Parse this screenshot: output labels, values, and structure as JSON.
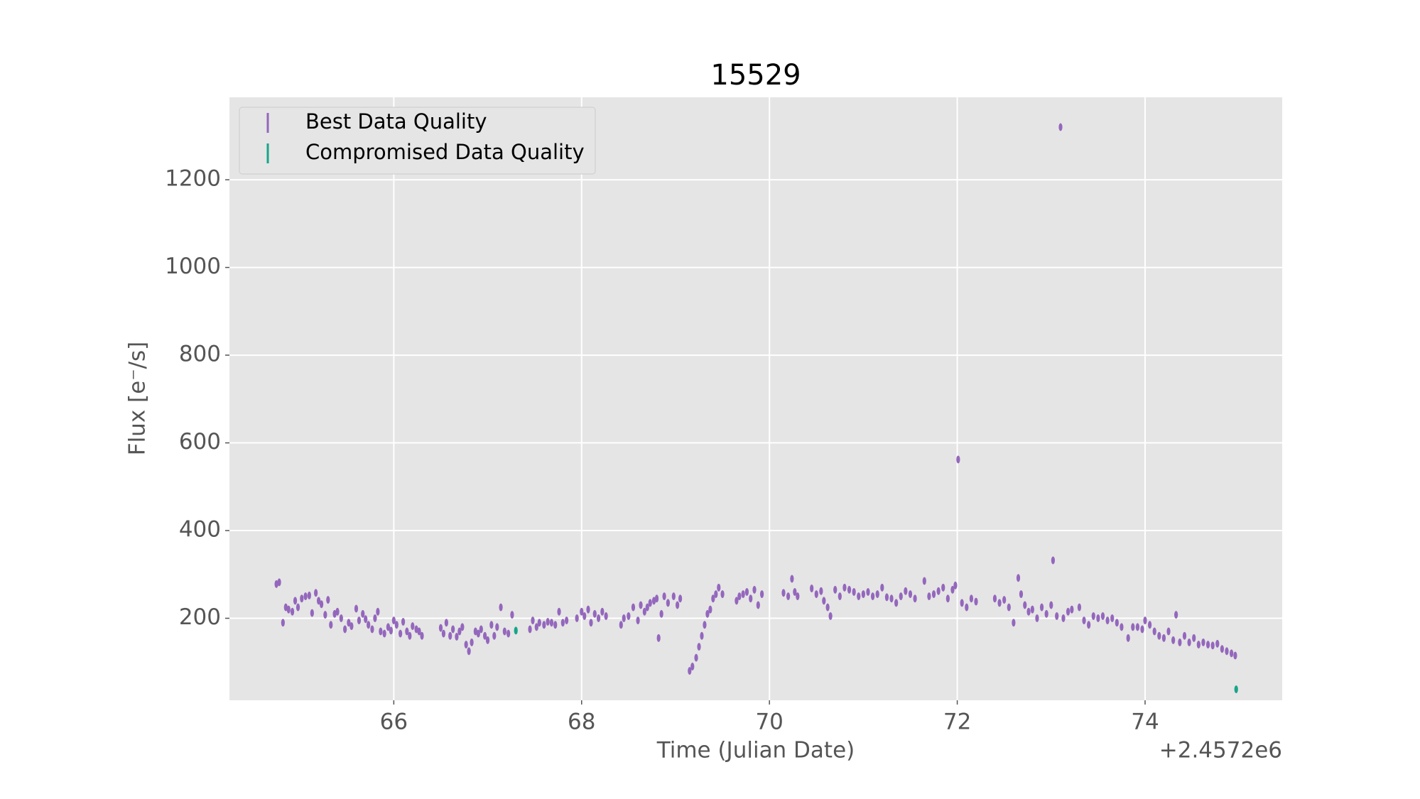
{
  "chart_data": {
    "type": "errorbar-scatter",
    "title": "15529",
    "xlabel": "Time (Julian Date)",
    "ylabel": "Flux [e⁻/s]",
    "x_offset_text": "+2.4572e6",
    "xlim": [
      64.25,
      75.46
    ],
    "ylim": [
      13,
      1388
    ],
    "xticks": [
      66,
      68,
      70,
      72,
      74
    ],
    "yticks": [
      200,
      400,
      600,
      800,
      1000,
      1200
    ],
    "grid": true,
    "legend": "upper left",
    "series": [
      {
        "name": "Best Data Quality",
        "color": "#9467bd",
        "x": [
          64.75,
          64.78,
          64.82,
          64.85,
          64.88,
          64.92,
          64.95,
          64.98,
          65.02,
          65.06,
          65.1,
          65.13,
          65.17,
          65.2,
          65.23,
          65.27,
          65.3,
          65.33,
          65.37,
          65.4,
          65.44,
          65.48,
          65.52,
          65.55,
          65.6,
          65.63,
          65.67,
          65.7,
          65.73,
          65.77,
          65.8,
          65.83,
          65.86,
          65.9,
          65.94,
          65.97,
          66.0,
          66.03,
          66.07,
          66.1,
          66.14,
          66.17,
          66.2,
          66.24,
          66.27,
          66.3,
          66.5,
          66.53,
          66.56,
          66.6,
          66.63,
          66.67,
          66.7,
          66.73,
          66.77,
          66.8,
          66.83,
          66.87,
          66.9,
          66.93,
          66.97,
          67.0,
          67.04,
          67.07,
          67.1,
          67.14,
          67.18,
          67.22,
          67.26,
          67.45,
          67.48,
          67.52,
          67.55,
          67.6,
          67.64,
          67.68,
          67.72,
          67.76,
          67.8,
          67.84,
          67.95,
          68.0,
          68.03,
          68.07,
          68.1,
          68.14,
          68.18,
          68.22,
          68.26,
          68.42,
          68.45,
          68.5,
          68.55,
          68.6,
          68.63,
          68.67,
          68.7,
          68.73,
          68.77,
          68.8,
          68.82,
          68.85,
          68.88,
          68.92,
          68.98,
          69.02,
          69.05,
          69.15,
          69.18,
          69.22,
          69.25,
          69.28,
          69.31,
          69.34,
          69.37,
          69.4,
          69.43,
          69.46,
          69.5,
          69.65,
          69.68,
          69.72,
          69.76,
          69.8,
          69.84,
          69.88,
          69.92,
          70.15,
          70.2,
          70.24,
          70.27,
          70.3,
          70.45,
          70.5,
          70.55,
          70.58,
          70.62,
          70.65,
          70.7,
          70.75,
          70.8,
          70.85,
          70.9,
          70.95,
          71.0,
          71.05,
          71.1,
          71.15,
          71.2,
          71.25,
          71.3,
          71.35,
          71.4,
          71.45,
          71.5,
          71.55,
          71.65,
          71.7,
          71.75,
          71.8,
          71.85,
          71.9,
          71.95,
          71.98,
          72.01,
          72.05,
          72.1,
          72.15,
          72.2,
          72.4,
          72.45,
          72.5,
          72.55,
          72.6,
          72.65,
          72.68,
          72.72,
          72.76,
          72.8,
          72.85,
          72.9,
          72.95,
          73.0,
          73.02,
          73.06,
          73.1,
          73.13,
          73.18,
          73.22,
          73.3,
          73.35,
          73.4,
          73.45,
          73.5,
          73.55,
          73.6,
          73.65,
          73.7,
          73.75,
          73.82,
          73.87,
          73.92,
          73.97,
          74.0,
          74.05,
          74.1,
          74.15,
          74.2,
          74.25,
          74.3,
          74.33,
          74.37,
          74.42,
          74.47,
          74.52,
          74.57,
          74.62,
          74.67,
          74.72,
          74.77,
          74.82,
          74.87,
          74.92,
          74.96
        ],
        "values": [
          278,
          282,
          190,
          225,
          220,
          215,
          240,
          225,
          245,
          250,
          252,
          212,
          258,
          240,
          232,
          208,
          242,
          185,
          210,
          215,
          200,
          175,
          190,
          182,
          222,
          195,
          210,
          198,
          185,
          175,
          200,
          215,
          170,
          165,
          180,
          172,
          195,
          185,
          165,
          192,
          170,
          160,
          182,
          175,
          170,
          160,
          178,
          165,
          190,
          160,
          175,
          158,
          170,
          180,
          140,
          125,
          145,
          170,
          165,
          175,
          160,
          150,
          185,
          160,
          180,
          225,
          170,
          165,
          208,
          175,
          195,
          180,
          190,
          185,
          192,
          190,
          185,
          215,
          190,
          195,
          200,
          215,
          205,
          220,
          190,
          210,
          200,
          215,
          205,
          185,
          200,
          205,
          225,
          195,
          230,
          215,
          225,
          235,
          240,
          245,
          155,
          210,
          250,
          235,
          250,
          230,
          245,
          80,
          90,
          110,
          135,
          160,
          185,
          210,
          220,
          245,
          255,
          270,
          255,
          240,
          250,
          255,
          260,
          245,
          265,
          230,
          255,
          258,
          250,
          290,
          260,
          250,
          268,
          255,
          262,
          240,
          225,
          205,
          265,
          250,
          270,
          265,
          260,
          250,
          255,
          260,
          250,
          255,
          270,
          248,
          245,
          235,
          250,
          262,
          255,
          245,
          285,
          250,
          255,
          262,
          270,
          245,
          265,
          275,
          562,
          235,
          225,
          245,
          238,
          245,
          235,
          242,
          225,
          190,
          292,
          255,
          230,
          215,
          220,
          200,
          225,
          210,
          230,
          332,
          205,
          1320,
          200,
          215,
          220,
          225,
          195,
          185,
          205,
          200,
          205,
          195,
          200,
          190,
          180,
          155,
          180,
          180,
          175,
          195,
          185,
          170,
          160,
          155,
          170,
          150,
          208,
          145,
          160,
          145,
          155,
          140,
          145,
          140,
          138,
          142,
          130,
          125,
          120,
          115
        ]
      },
      {
        "name": "Compromised Data Quality",
        "color": "#17a589",
        "x": [
          67.3,
          74.97
        ],
        "values": [
          172,
          38
        ]
      }
    ]
  }
}
